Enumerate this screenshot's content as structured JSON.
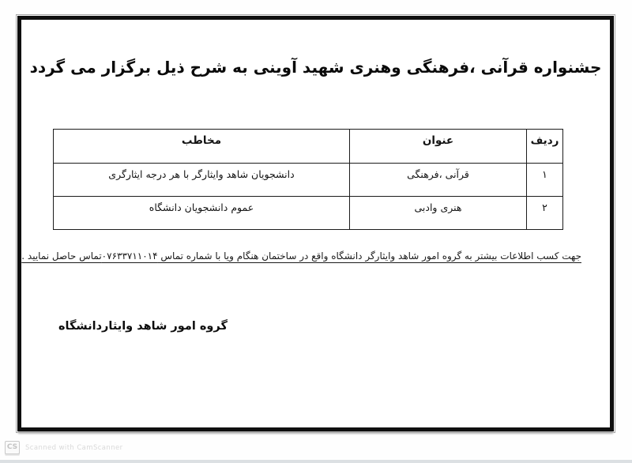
{
  "page": {
    "title": "جشنواره قرآنی ،فرهنگی وهنری شهید آوینی به شرح ذیل برگزار می گردد",
    "table": {
      "headers": [
        "ردیف",
        "عنوان",
        "مخاطب"
      ],
      "rows": [
        [
          "۱",
          "قرآنی ،فرهنگی",
          "دانشجویان شاهد وایثارگر با هر درجه ایثارگری"
        ],
        [
          "۲",
          "هنری وادبی",
          "عموم دانشجویان دانشگاه"
        ]
      ]
    },
    "footnote": "جهت کسب اطلاعات بیشتر به گروه امور شاهد وایثارگر دانشگاه واقع در ساختمان هنگام ویا با شماره تماس ۰۷۶۳۳۷۱۱۰۱۴تماس حاصل نمایید .",
    "signature": "گروه امور شاهد وایثاردانشگاه"
  },
  "watermark": {
    "badge": "CS",
    "text": "Scanned with CamScanner"
  },
  "colors": {
    "frame_border": "#0f0f0f",
    "table_border": "#1c1c1c",
    "text": "#141414",
    "watermark_gray": "#d9d9d9",
    "bottom_strip": "#dce0e3"
  }
}
